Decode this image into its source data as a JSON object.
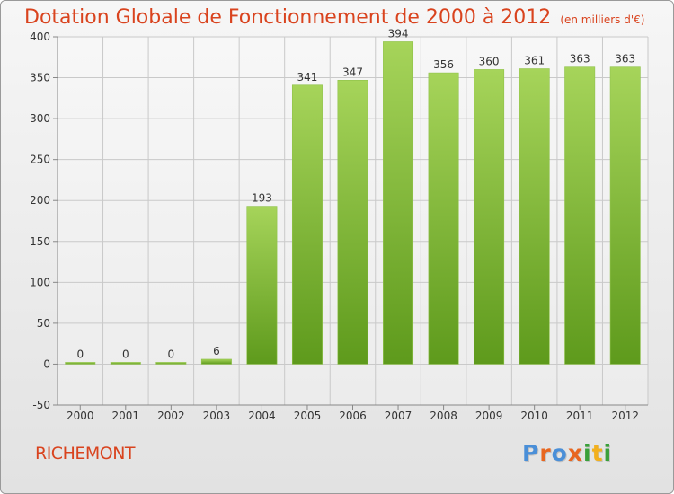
{
  "header": {
    "title": "Dotation Globale de Fonctionnement de 2000 à 2012",
    "unit_note": "(en milliers d'€)"
  },
  "footer": {
    "commune": "RICHEMONT",
    "logo_text": "Proxiti",
    "logo_colors": [
      "#4a8fd8",
      "#e8661f",
      "#4a8fd8",
      "#e8661f",
      "#3aa03a",
      "#f2b01e",
      "#3aa03a"
    ]
  },
  "colors": {
    "title": "#d9431e",
    "bar_light": "#a6d45a",
    "bar_dark": "#5e9a1c",
    "grid": "#c9c9c9",
    "text": "#333333"
  },
  "chart_data": {
    "type": "bar",
    "categories": [
      "2000",
      "2001",
      "2002",
      "2003",
      "2004",
      "2005",
      "2006",
      "2007",
      "2008",
      "2009",
      "2010",
      "2011",
      "2012"
    ],
    "values": [
      0,
      0,
      0,
      6,
      193,
      341,
      347,
      394,
      356,
      360,
      361,
      363,
      363
    ],
    "data_labels": [
      "0",
      "0",
      "0",
      "6",
      "193",
      "341",
      "347",
      "394",
      "356",
      "360",
      "361",
      "363",
      "363"
    ],
    "yticks": [
      -50,
      0,
      50,
      100,
      150,
      200,
      250,
      300,
      350,
      400
    ],
    "ylim": [
      -50,
      400
    ],
    "grid": true,
    "legend": "none"
  }
}
